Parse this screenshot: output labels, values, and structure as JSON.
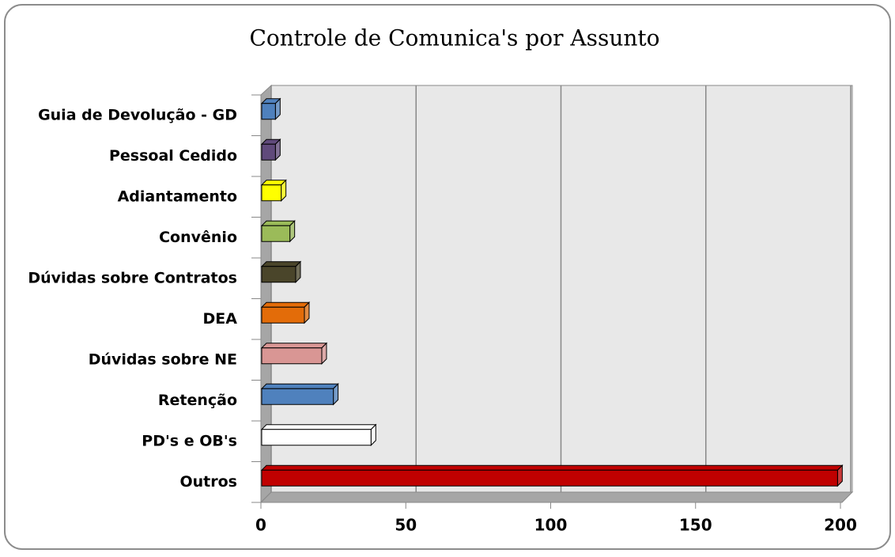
{
  "chart_data": {
    "type": "bar3d_horizontal",
    "title": "Controle de Comunica's por Assunto",
    "categories": [
      "Outros",
      "PD's e OB's",
      "Retenção",
      "Dúvidas sobre NE",
      "DEA",
      "Dúvidas sobre Contratos",
      "Convênio",
      "Adiantamento",
      "Pessoal Cedido",
      "Guia de Devolução - GD"
    ],
    "values": [
      199,
      38,
      25,
      21,
      15,
      12,
      10,
      7,
      5,
      5
    ],
    "colors": [
      "#c00000",
      "#ffffff",
      "#4f81bd",
      "#d99694",
      "#e36c09",
      "#4a452a",
      "#9bbb59",
      "#ffff00",
      "#604a7b",
      "#4f81bd"
    ],
    "xlim": [
      0,
      200
    ],
    "xticks": [
      0,
      50,
      100,
      150,
      200
    ],
    "grid": true
  }
}
